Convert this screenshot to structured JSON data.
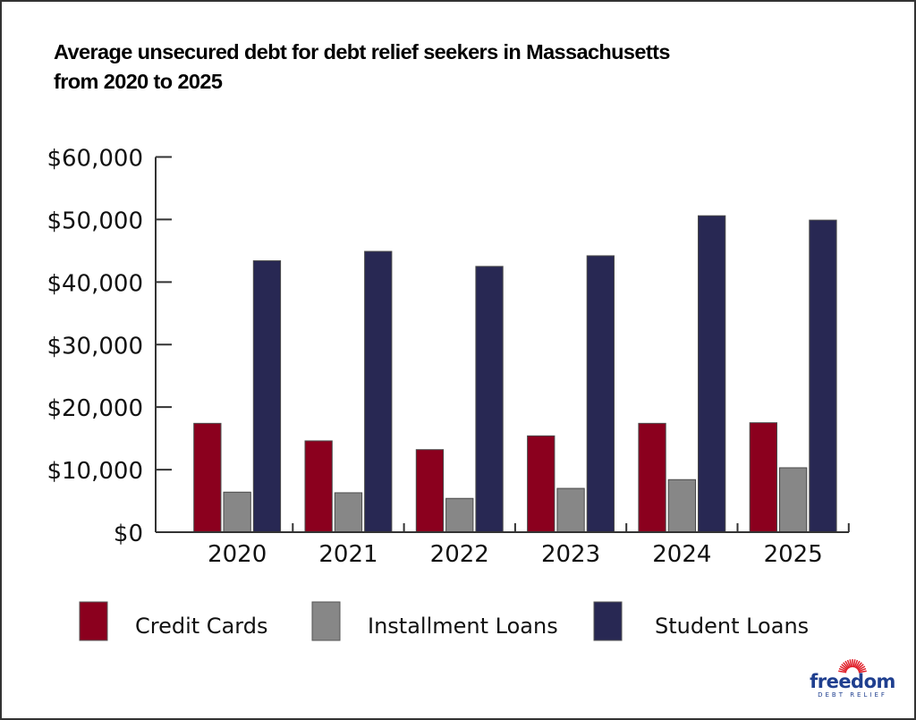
{
  "chart_data": {
    "type": "bar",
    "title": "Average unsecured debt for debt relief seekers in Massachusetts from 2020 to 2025",
    "title_lines": [
      "Average unsecured debt for debt relief seekers in Massachusetts",
      "from 2020 to 2025"
    ],
    "xlabel": "",
    "ylabel": "",
    "categories": [
      "2020",
      "2021",
      "2022",
      "2023",
      "2024",
      "2025"
    ],
    "series": [
      {
        "name": "Credit Cards",
        "color": "#8b001e",
        "values": [
          17400,
          14600,
          13200,
          15400,
          17400,
          17500
        ]
      },
      {
        "name": "Installment Loans",
        "color": "#878787",
        "values": [
          6400,
          6300,
          5400,
          7000,
          8400,
          10300
        ]
      },
      {
        "name": "Student Loans",
        "color": "#282853",
        "values": [
          43400,
          44900,
          42500,
          44200,
          50600,
          49900
        ]
      }
    ],
    "ylim": [
      0,
      60000
    ],
    "yticks": [
      0,
      10000,
      20000,
      30000,
      40000,
      50000,
      60000
    ],
    "ytick_labels": [
      "$0",
      "$10,000",
      "$20,000",
      "$30,000",
      "$40,000",
      "$50,000",
      "$60,000"
    ],
    "grid": false,
    "legend_position": "bottom"
  },
  "branding": {
    "logo_word": "freedom",
    "logo_sub": "DEBT RELIEF",
    "logo_color": "#1f3f8f",
    "ray_color": "#e0202a"
  }
}
